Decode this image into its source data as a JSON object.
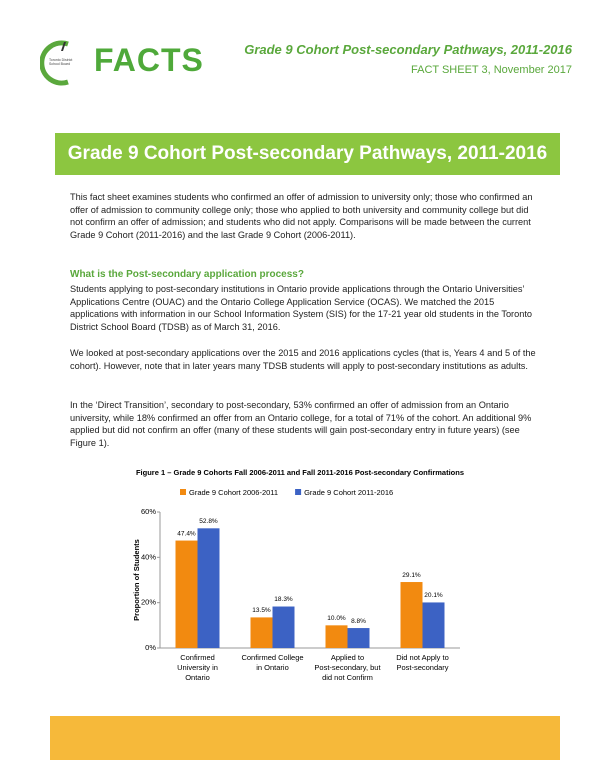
{
  "header": {
    "logo_text": "FACTS",
    "logo_subtext": "Toronto District School Board",
    "title": "Grade 9 Cohort Post-secondary Pathways, 2011-2016",
    "subtitle": "FACT SHEET 3, November 2017"
  },
  "banner": "Grade 9 Cohort Post-secondary Pathways, 2011-2016",
  "intro": "This fact sheet examines students who confirmed an offer of admission to university only; those who confirmed an offer of admission to community college only; those who applied to both university and community college but did not confirm an offer of admission; and students who did not apply. Comparisons will be made between the current Grade 9 Cohort (2011-2016) and the last Grade 9 Cohort (2006-2011).",
  "section": {
    "heading": "What is the Post-secondary application process?",
    "paragraphs": [
      "Students applying to post-secondary institutions in Ontario provide applications through the Ontario Universities’ Applications Centre (OUAC) and the Ontario College Application Service (OCAS). We matched the 2015 applications with information in our School Information System (SIS) for the 17-21 year old students in the Toronto District School Board (TDSB) as of March 31, 2016.",
      "We looked at post-secondary applications over the 2015 and 2016 applications cycles (that is, Years 4 and 5 of the cohort). However, note that in later years many TDSB students will apply to post-secondary institutions as adults.",
      "In the ‘Direct Transition’, secondary to post-secondary, 53% confirmed an offer of admission from an Ontario university, while 18% confirmed an offer from an Ontario college, for a total of 71% of the cohort. An additional 9% applied but did not confirm an offer (many of these students will gain post-secondary entry in future years) (see Figure 1)."
    ]
  },
  "chart_data": {
    "type": "bar",
    "title": "Figure 1 – Grade 9 Cohorts Fall 2006-2011 and Fall 2011-2016 Post-secondary Confirmations",
    "y_label": "Proportion of Students",
    "categories": [
      "Confirmed University in Ontario",
      "Confirmed College in Ontario",
      "Applied to Post-secondary, but did not Confirm",
      "Did not Apply to Post-secondary"
    ],
    "series": [
      {
        "name": "Grade 9 Cohort 2006-2011",
        "color": "#f28a10",
        "values": [
          47.4,
          13.5,
          10.0,
          29.1
        ],
        "value_labels": [
          "47.4%",
          "13.5%",
          "10.0%",
          "29.1%"
        ]
      },
      {
        "name": "Grade 9 Cohort 2011-2016",
        "color": "#3c62c4",
        "values": [
          52.8,
          18.3,
          8.8,
          20.1
        ],
        "value_labels": [
          "52.8%",
          "18.3%",
          "8.8%",
          "20.1%"
        ]
      }
    ],
    "ylim": [
      0,
      60
    ],
    "yticks": [
      {
        "value": 0,
        "label": "0%"
      },
      {
        "value": 20,
        "label": "20%"
      },
      {
        "value": 40,
        "label": "40%"
      },
      {
        "value": 60,
        "label": "60%"
      }
    ],
    "grid": false,
    "legend": "top"
  }
}
